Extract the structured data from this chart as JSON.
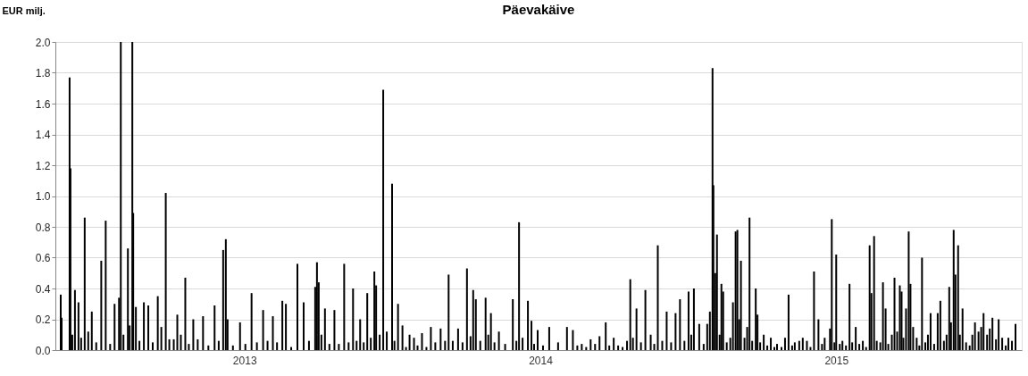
{
  "chart_data": {
    "type": "bar",
    "title": "Päevakäive",
    "ylabel": "EUR milj.",
    "color": "#000000",
    "grid": "y",
    "xlim": [
      2012.376,
      2015.612
    ],
    "xticks": [
      2013,
      2014,
      2015
    ],
    "ylim": [
      0,
      2
    ],
    "yticks": [
      {
        "value": 0,
        "label": "0.0"
      },
      {
        "value": 0.2,
        "label": "0.2"
      },
      {
        "value": 0.4,
        "label": "0.4"
      },
      {
        "value": 0.6,
        "label": "0.6"
      },
      {
        "value": 0.8,
        "label": "0.8"
      },
      {
        "value": 1,
        "label": "1.0"
      },
      {
        "value": 1.2,
        "label": "1.2"
      },
      {
        "value": 1.4,
        "label": "1.4"
      },
      {
        "value": 1.6,
        "label": "1.6"
      },
      {
        "value": 1.8,
        "label": "1.8"
      },
      {
        "value": 2,
        "label": "2.0"
      }
    ],
    "x": [
      2012.379,
      2012.382,
      2012.409,
      2012.412,
      2012.418,
      2012.427,
      2012.439,
      2012.448,
      2012.46,
      2012.472,
      2012.484,
      2012.499,
      2012.516,
      2012.531,
      2012.546,
      2012.561,
      2012.576,
      2012.582,
      2012.591,
      2012.603,
      2012.606,
      2012.612,
      2012.621,
      2012.624,
      2012.633,
      2012.645,
      2012.66,
      2012.675,
      2012.69,
      2012.707,
      2012.719,
      2012.734,
      2012.746,
      2012.761,
      2012.773,
      2012.785,
      2012.8,
      2012.812,
      2012.827,
      2012.842,
      2012.86,
      2012.878,
      2012.899,
      2012.913,
      2012.928,
      2012.937,
      2012.943,
      2012.961,
      2012.985,
      2013.003,
      2013.024,
      2013.042,
      2013.063,
      2013.078,
      2013.096,
      2013.11,
      2013.128,
      2013.14,
      2013.158,
      2013.179,
      2013.2,
      2013.218,
      2013.239,
      2013.245,
      2013.251,
      2013.26,
      2013.272,
      2013.287,
      2013.304,
      2013.319,
      2013.337,
      2013.352,
      2013.367,
      2013.379,
      2013.391,
      2013.403,
      2013.415,
      2013.427,
      2013.439,
      2013.445,
      2013.457,
      2013.469,
      2013.481,
      2013.499,
      2013.507,
      2013.519,
      2013.534,
      2013.546,
      2013.558,
      2013.573,
      2013.585,
      2013.6,
      2013.615,
      2013.63,
      2013.645,
      2013.663,
      2013.678,
      2013.69,
      2013.704,
      2013.722,
      2013.737,
      2013.752,
      2013.764,
      2013.773,
      2013.782,
      2013.797,
      2013.815,
      2013.824,
      2013.833,
      2013.845,
      2013.86,
      2013.881,
      2013.907,
      2013.919,
      2013.928,
      2013.94,
      2013.958,
      2013.97,
      2013.979,
      2013.991,
      2014.009,
      2014.03,
      2014.06,
      2014.09,
      2014.11,
      2014.125,
      2014.14,
      2014.155,
      2014.17,
      2014.185,
      2014.2,
      2014.221,
      2014.233,
      2014.248,
      2014.263,
      2014.278,
      2014.293,
      2014.304,
      2014.313,
      2014.325,
      2014.34,
      2014.355,
      2014.373,
      2014.385,
      2014.397,
      2014.412,
      2014.427,
      2014.442,
      2014.457,
      2014.472,
      2014.487,
      2014.501,
      2014.51,
      2014.519,
      2014.537,
      2014.552,
      2014.564,
      2014.573,
      2014.582,
      2014.585,
      2014.591,
      2014.597,
      2014.606,
      2014.612,
      2014.618,
      2014.63,
      2014.642,
      2014.651,
      2014.66,
      2014.666,
      2014.672,
      2014.678,
      2014.69,
      2014.699,
      2014.707,
      2014.716,
      2014.728,
      2014.734,
      2014.743,
      2014.755,
      2014.767,
      2014.779,
      2014.791,
      2014.8,
      2014.815,
      2014.827,
      2014.839,
      2014.851,
      2014.86,
      2014.875,
      2014.887,
      2014.901,
      2014.913,
      2014.925,
      2014.94,
      2014.952,
      2014.961,
      2014.979,
      2014.985,
      2014.994,
      2015.0,
      2015.012,
      2015.021,
      2015.033,
      2015.045,
      2015.054,
      2015.066,
      2015.078,
      2015.09,
      2015.101,
      2015.113,
      2015.119,
      2015.128,
      2015.137,
      2015.149,
      2015.158,
      2015.167,
      2015.176,
      2015.188,
      2015.197,
      2015.206,
      2015.215,
      2015.221,
      2015.227,
      2015.236,
      2015.245,
      2015.251,
      2015.26,
      2015.272,
      2015.281,
      2015.29,
      2015.301,
      2015.31,
      2015.319,
      2015.331,
      2015.343,
      2015.352,
      2015.364,
      2015.373,
      2015.382,
      2015.388,
      2015.397,
      2015.403,
      2015.412,
      2015.418,
      2015.427,
      2015.439,
      2015.451,
      2015.46,
      2015.469,
      2015.481,
      2015.49,
      2015.498,
      2015.51,
      2015.519,
      2015.528,
      2015.54,
      2015.549,
      2015.561,
      2015.573,
      2015.582,
      2015.594,
      2015.606
    ],
    "values": [
      0.36,
      0.21,
      1.77,
      1.18,
      0.1,
      0.39,
      0.31,
      0.08,
      0.86,
      0.12,
      0.25,
      0.05,
      0.58,
      0.84,
      0.04,
      0.3,
      0.34,
      2.0,
      0.1,
      null,
      0.66,
      0.16,
      2.0,
      0.89,
      0.28,
      0.06,
      0.31,
      0.29,
      0.05,
      0.35,
      0.15,
      1.02,
      0.07,
      0.07,
      0.23,
      0.1,
      0.47,
      0.04,
      0.2,
      0.07,
      0.22,
      0.03,
      0.29,
      0.06,
      0.65,
      0.72,
      0.2,
      0.03,
      0.18,
      0.04,
      0.37,
      0.05,
      0.26,
      0.06,
      0.22,
      0.05,
      0.32,
      0.3,
      0.02,
      0.56,
      0.31,
      0.06,
      0.41,
      0.57,
      0.44,
      0.1,
      0.27,
      0.04,
      0.26,
      0.04,
      0.56,
      0.05,
      0.4,
      0.06,
      0.2,
      0.05,
      0.37,
      0.08,
      0.51,
      0.42,
      0.1,
      1.69,
      0.12,
      1.08,
      0.06,
      0.3,
      0.16,
      0.02,
      0.1,
      0.08,
      0.03,
      0.11,
      0.02,
      0.15,
      0.05,
      0.14,
      0.06,
      0.49,
      0.06,
      0.14,
      0.05,
      0.53,
      0.09,
      0.39,
      0.33,
      0.06,
      0.34,
      0.1,
      0.24,
      0.05,
      0.12,
      0.04,
      0.33,
      0.06,
      0.83,
      0.08,
      0.32,
      0.19,
      0.04,
      0.13,
      0.03,
      0.15,
      0.05,
      0.15,
      0.13,
      0.03,
      0.04,
      0.02,
      0.07,
      0.04,
      0.09,
      0.18,
      0.03,
      0.08,
      0.03,
      0.02,
      0.06,
      0.46,
      0.08,
      0.27,
      0.05,
      0.39,
      0.1,
      0.04,
      0.68,
      0.06,
      0.25,
      0.05,
      0.24,
      0.33,
      0.06,
      0.38,
      0.1,
      0.4,
      0.17,
      0.04,
      0.17,
      0.25,
      1.83,
      1.07,
      0.5,
      0.75,
      0.1,
      0.43,
      0.38,
      0.05,
      0.08,
      0.31,
      0.77,
      0.78,
      0.2,
      0.58,
      0.08,
      0.15,
      0.86,
      0.06,
      0.4,
      0.23,
      0.05,
      0.1,
      0.03,
      0.08,
      0.02,
      0.04,
      0.02,
      0.08,
      0.36,
      0.03,
      0.05,
      0.06,
      0.08,
      0.06,
      0.02,
      0.51,
      0.2,
      0.04,
      0.08,
      0.14,
      0.85,
      0.05,
      0.62,
      0.04,
      0.06,
      0.03,
      0.43,
      0.05,
      0.15,
      0.04,
      0.06,
      0.02,
      0.68,
      0.37,
      0.74,
      0.06,
      0.05,
      0.44,
      0.27,
      0.04,
      0.1,
      0.47,
      0.12,
      0.42,
      0.38,
      0.08,
      0.27,
      0.77,
      0.43,
      0.15,
      0.08,
      0.03,
      0.6,
      0.05,
      0.1,
      0.24,
      0.04,
      0.24,
      0.32,
      0.06,
      0.1,
      0.41,
      0.18,
      0.78,
      0.49,
      0.68,
      0.1,
      0.27,
      0.05,
      0.03,
      0.1,
      0.18,
      0.12,
      0.15,
      0.24,
      0.1,
      0.14,
      0.21,
      0.07,
      0.2,
      0.08,
      0.03,
      0.08,
      0.06,
      0.17
    ]
  }
}
